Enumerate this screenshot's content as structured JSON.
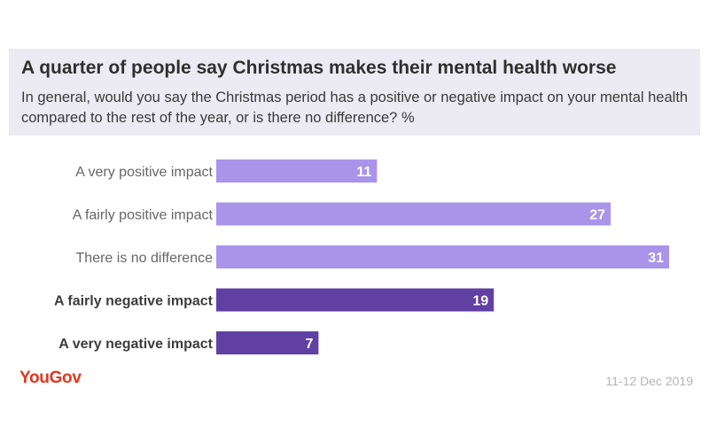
{
  "header": {
    "title": "A quarter of people say Christmas makes their mental health worse",
    "subtitle": "In general, would you say the Christmas period has a positive or negative impact on your mental health compared to the rest of the year, or is there no difference? %"
  },
  "footer": {
    "brand": "YouGov",
    "date": "11-12 Dec 2019"
  },
  "colors": {
    "positive": "#a994ea",
    "negative": "#6140a4",
    "brand": "#e0371f"
  },
  "chart_data": {
    "type": "bar",
    "orientation": "horizontal",
    "categories": [
      "A very positive impact",
      "A fairly positive impact",
      "There is no difference",
      "A fairly negative impact",
      "A very negative impact"
    ],
    "values": [
      11,
      27,
      31,
      19,
      7
    ],
    "bold_categories": [
      false,
      false,
      false,
      true,
      true
    ],
    "bar_colors": [
      "#a994ea",
      "#a994ea",
      "#a994ea",
      "#6140a4",
      "#6140a4"
    ],
    "xlim": [
      0,
      31
    ],
    "grid": false,
    "legend": "none",
    "unit": "%"
  }
}
